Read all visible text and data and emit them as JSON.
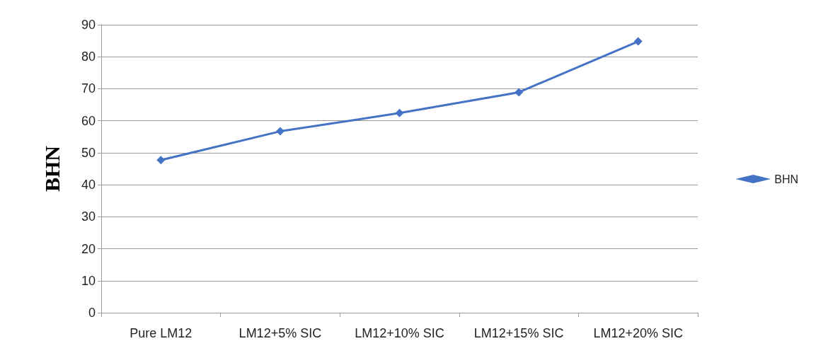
{
  "chart_data": {
    "type": "line",
    "ylabel": "BHN",
    "categories": [
      "Pure LM12",
      "LM12+5% SIC",
      "LM12+10% SIC",
      "LM12+15% SIC",
      "LM12+20% SIC"
    ],
    "series": [
      {
        "name": "BHN",
        "color": "#4472c4",
        "values": [
          47.7,
          56.7,
          62.4,
          68.9,
          84.8
        ]
      }
    ],
    "ylim": [
      0,
      90
    ],
    "yticks": [
      0,
      10,
      20,
      30,
      40,
      50,
      60,
      70,
      80,
      90
    ],
    "grid": "y",
    "legend": "right",
    "marker": "diamond",
    "line_style": "solid"
  }
}
